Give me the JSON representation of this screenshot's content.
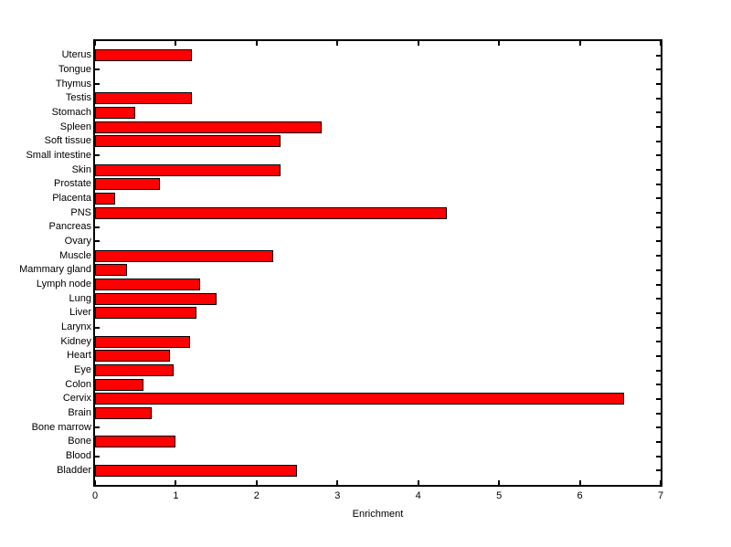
{
  "chart_data": {
    "type": "bar",
    "orientation": "horizontal",
    "title": "",
    "xlabel": "Enrichment",
    "ylabel": "",
    "xlim": [
      0,
      7
    ],
    "xticks": [
      "0",
      "1",
      "2",
      "3",
      "4",
      "5",
      "6",
      "7"
    ],
    "grid": false,
    "legend": null,
    "categories": [
      "Uterus",
      "Tongue",
      "Thymus",
      "Testis",
      "Stomach",
      "Spleen",
      "Soft tissue",
      "Small intestine",
      "Skin",
      "Prostate",
      "Placenta",
      "PNS",
      "Pancreas",
      "Ovary",
      "Muscle",
      "Mammary gland",
      "Lymph node",
      "Lung",
      "Liver",
      "Larynx",
      "Kidney",
      "Heart",
      "Eye",
      "Colon",
      "Cervix",
      "Brain",
      "Bone marrow",
      "Bone",
      "Blood",
      "Bladder"
    ],
    "values": [
      1.2,
      0,
      0,
      1.2,
      0.5,
      2.8,
      2.3,
      0,
      2.3,
      0.8,
      0.25,
      4.35,
      0,
      0,
      2.2,
      0.4,
      1.3,
      1.5,
      1.25,
      0,
      1.18,
      0.93,
      0.97,
      0.6,
      6.55,
      0.7,
      0,
      1.0,
      0,
      2.5
    ],
    "colors": {
      "bar_fill": "#ff0000",
      "bar_edge": "#000000",
      "axis": "#000000",
      "text": "#000000",
      "background": "#ffffff"
    }
  }
}
